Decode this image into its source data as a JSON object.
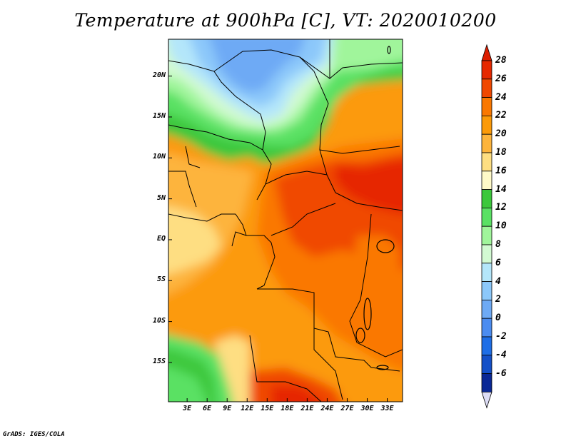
{
  "title": "Temperature at 900hPa [C], VT: 2020010200",
  "footer": "GrADS: IGES/COLA",
  "map": {
    "lat_ticks": [
      {
        "value": 20,
        "label": "20N"
      },
      {
        "value": 15,
        "label": "15N"
      },
      {
        "value": 10,
        "label": "10N"
      },
      {
        "value": 5,
        "label": "5N"
      },
      {
        "value": 0,
        "label": "EQ"
      },
      {
        "value": -5,
        "label": "5S"
      },
      {
        "value": -10,
        "label": "10S"
      },
      {
        "value": -15,
        "label": "15S"
      }
    ],
    "lon_ticks": [
      {
        "value": 3,
        "label": "3E"
      },
      {
        "value": 6,
        "label": "6E"
      },
      {
        "value": 9,
        "label": "9E"
      },
      {
        "value": 12,
        "label": "12E"
      },
      {
        "value": 15,
        "label": "15E"
      },
      {
        "value": 18,
        "label": "18E"
      },
      {
        "value": 21,
        "label": "21E"
      },
      {
        "value": 24,
        "label": "24E"
      },
      {
        "value": 27,
        "label": "27E"
      },
      {
        "value": 30,
        "label": "30E"
      },
      {
        "value": 33,
        "label": "33E"
      }
    ],
    "lon_range": [
      0.2,
      35.3
    ],
    "lat_range": [
      -19.8,
      24.5
    ]
  },
  "colorbar": {
    "levels": [
      {
        "label": "28",
        "color": "#e62800"
      },
      {
        "label": "26",
        "color": "#f04800"
      },
      {
        "label": "24",
        "color": "#fa7800"
      },
      {
        "label": "22",
        "color": "#fc9a08"
      },
      {
        "label": "20",
        "color": "#fdb43c"
      },
      {
        "label": "18",
        "color": "#fede82"
      },
      {
        "label": "16",
        "color": "#fffac8"
      },
      {
        "label": "14",
        "color": "#3cc83c"
      },
      {
        "label": "12",
        "color": "#5ae164"
      },
      {
        "label": "10",
        "color": "#a0f59b"
      },
      {
        "label": "8",
        "color": "#d2fad2"
      },
      {
        "label": "6",
        "color": "#b4e6fa"
      },
      {
        "label": "4",
        "color": "#8cc8fa"
      },
      {
        "label": "2",
        "color": "#6eaaf5"
      },
      {
        "label": "0",
        "color": "#4b8cf0"
      },
      {
        "label": "-2",
        "color": "#1e6ee6"
      },
      {
        "label": "-4",
        "color": "#1450c8"
      },
      {
        "label": "-6",
        "color": "#0a2896"
      }
    ],
    "over_color": "#dc1e00",
    "under_color": "#dcdcf5"
  }
}
